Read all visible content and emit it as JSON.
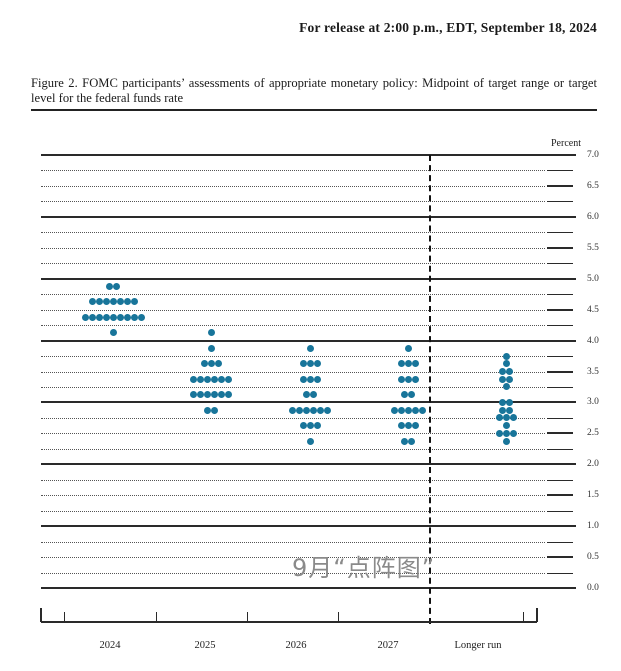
{
  "header": {
    "release_line": "For release at 2:00 p.m., EDT, September 18, 2024"
  },
  "figure": {
    "caption": "Figure 2.  FOMC participants’ assessments of appropriate monetary policy:  Midpoint of target range or target level for the federal funds rate"
  },
  "watermark": "9月“点阵图”",
  "chart_data": {
    "type": "scatter",
    "title": "FOMC dot plot — midpoint of target range or target level for the federal funds rate",
    "ylabel": "Percent",
    "ylim": [
      0.0,
      7.0
    ],
    "grid_step": 0.25,
    "y_tick_labels": [
      "7.0",
      "6.5",
      "6.0",
      "5.5",
      "5.0",
      "4.5",
      "4.0",
      "3.5",
      "3.0",
      "2.5",
      "2.0",
      "1.5",
      "1.0",
      "0.5",
      "0.0"
    ],
    "grid": "dotted quarters, solid integers",
    "legend_position": "none",
    "dot_color": "#18759a",
    "categories": [
      "2024",
      "2025",
      "2026",
      "2027",
      "Longer run"
    ],
    "separator_after_category_index": 3,
    "series": [
      {
        "name": "2024",
        "dots": [
          {
            "rate": 4.875,
            "count": 2
          },
          {
            "rate": 4.625,
            "count": 7
          },
          {
            "rate": 4.375,
            "count": 9
          },
          {
            "rate": 4.125,
            "count": 1
          }
        ]
      },
      {
        "name": "2025",
        "dots": [
          {
            "rate": 4.125,
            "count": 1
          },
          {
            "rate": 3.875,
            "count": 1
          },
          {
            "rate": 3.625,
            "count": 3
          },
          {
            "rate": 3.375,
            "count": 6
          },
          {
            "rate": 3.125,
            "count": 6
          },
          {
            "rate": 2.875,
            "count": 2
          }
        ]
      },
      {
        "name": "2026",
        "dots": [
          {
            "rate": 3.875,
            "count": 1
          },
          {
            "rate": 3.625,
            "count": 3
          },
          {
            "rate": 3.375,
            "count": 3
          },
          {
            "rate": 3.125,
            "count": 2
          },
          {
            "rate": 2.875,
            "count": 6
          },
          {
            "rate": 2.625,
            "count": 3
          },
          {
            "rate": 2.375,
            "count": 1
          }
        ]
      },
      {
        "name": "2027",
        "dots": [
          {
            "rate": 3.875,
            "count": 1
          },
          {
            "rate": 3.625,
            "count": 3
          },
          {
            "rate": 3.375,
            "count": 3
          },
          {
            "rate": 3.125,
            "count": 2
          },
          {
            "rate": 2.875,
            "count": 5
          },
          {
            "rate": 2.625,
            "count": 3
          },
          {
            "rate": 2.375,
            "count": 2
          }
        ]
      },
      {
        "name": "Longer run",
        "dots": [
          {
            "rate": 3.75,
            "count": 1
          },
          {
            "rate": 3.625,
            "count": 1
          },
          {
            "rate": 3.5,
            "count": 2
          },
          {
            "rate": 3.375,
            "count": 2
          },
          {
            "rate": 3.25,
            "count": 1
          },
          {
            "rate": 3.0,
            "count": 2
          },
          {
            "rate": 2.875,
            "count": 2
          },
          {
            "rate": 2.75,
            "count": 3
          },
          {
            "rate": 2.625,
            "count": 1
          },
          {
            "rate": 2.5,
            "count": 3
          },
          {
            "rate": 2.375,
            "count": 1
          }
        ]
      }
    ]
  }
}
